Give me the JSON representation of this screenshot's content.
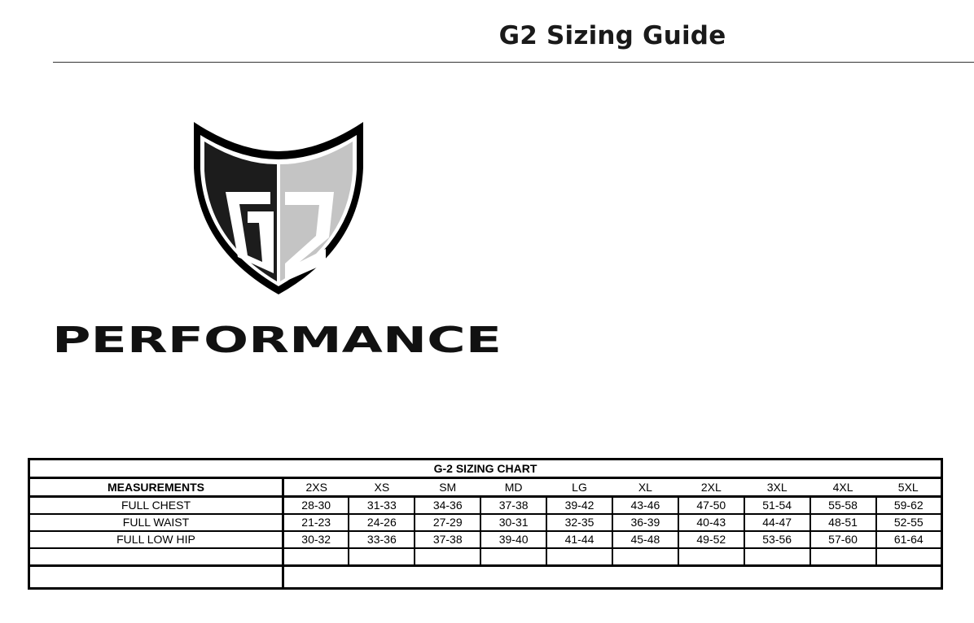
{
  "header": {
    "title": "G2 Sizing Guide"
  },
  "logo": {
    "mark": "G2",
    "wordmark": "PERFORMANCE",
    "colors": {
      "dark": "#1c1c1c",
      "light": "#c4c4c4"
    }
  },
  "chart": {
    "caption": "G-2 SIZING CHART",
    "measurements_label": "MEASUREMENTS",
    "sizes": [
      "2XS",
      "XS",
      "SM",
      "MD",
      "LG",
      "XL",
      "2XL",
      "3XL",
      "4XL",
      "5XL"
    ],
    "rows": [
      {
        "label": "FULL CHEST",
        "values": [
          "28-30",
          "31-33",
          "34-36",
          "37-38",
          "39-42",
          "43-46",
          "47-50",
          "51-54",
          "55-58",
          "59-62"
        ]
      },
      {
        "label": "FULL WAIST",
        "values": [
          "21-23",
          "24-26",
          "27-29",
          "30-31",
          "32-35",
          "36-39",
          "40-43",
          "44-47",
          "48-51",
          "52-55"
        ]
      },
      {
        "label": "FULL LOW HIP",
        "values": [
          "30-32",
          "33-36",
          "37-38",
          "39-40",
          "41-44",
          "45-48",
          "49-52",
          "53-56",
          "57-60",
          "61-64"
        ]
      }
    ]
  }
}
